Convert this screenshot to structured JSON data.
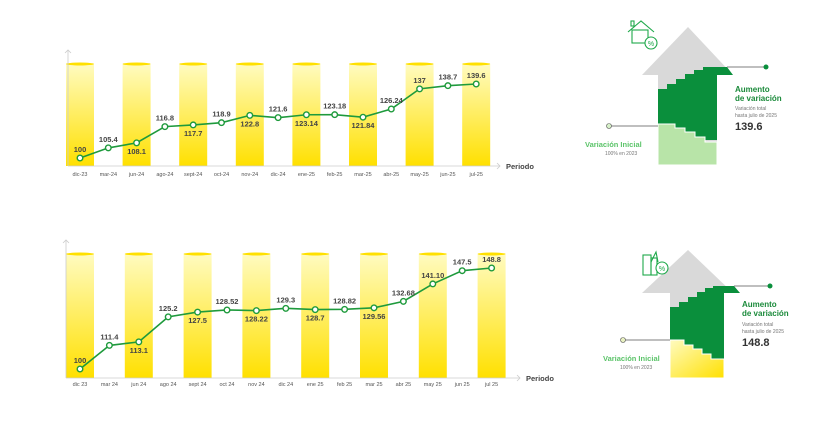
{
  "chart_data": [
    {
      "type": "line",
      "categories": [
        "dic-23",
        "mar-24",
        "jun-24",
        "ago-24",
        "sept-24",
        "oct-24",
        "nov-24",
        "dic-24",
        "ene-25",
        "feb-25",
        "mar-25",
        "abr-25",
        "may-25",
        "jun-25",
        "jul-25"
      ],
      "values": [
        100,
        105.4,
        108.1,
        116.8,
        117.7,
        118.9,
        122.8,
        121.6,
        123.14,
        123.18,
        121.84,
        126.24,
        137,
        138.7,
        139.6
      ],
      "value_labels": [
        "100",
        "105.4",
        "108.1",
        "116.8",
        "117.7",
        "118.9",
        "122.8",
        "121.6",
        "123.14",
        "123.18",
        "121.84",
        "126.24",
        "137",
        "138.7",
        "139.6"
      ],
      "xlabel": "Periodo",
      "ylabel": "",
      "ylim": [
        96,
        142
      ],
      "grid": false
    },
    {
      "type": "line",
      "categories": [
        "dic 23",
        "mar 24",
        "jun 24",
        "ago 24",
        "sept 24",
        "oct 24",
        "nov 24",
        "dic 24",
        "ene 25",
        "feb 25",
        "mar 25",
        "abr 25",
        "may 25",
        "jun 25",
        "jul 25"
      ],
      "values": [
        100,
        111.4,
        113.1,
        125.2,
        127.5,
        128.52,
        128.22,
        129.3,
        128.7,
        128.82,
        129.56,
        132.68,
        141.1,
        147.5,
        148.8
      ],
      "value_labels": [
        "100",
        "111.4",
        "113.1",
        "125.2",
        "127.5",
        "128.52",
        "128.22",
        "129.3",
        "128.7",
        "128.82",
        "129.56",
        "132.68",
        "141.10",
        "147.5",
        "148.8"
      ],
      "xlabel": "Periodo",
      "ylabel": "",
      "ylim": [
        96,
        155
      ],
      "grid": false
    }
  ],
  "infographics": [
    {
      "title_line1": "Aumento",
      "title_line2": "de variación",
      "sub_line1": "Variación total",
      "sub_line2": "hasta julio de 2025",
      "value": "139.6",
      "initial_title": "Variación Inicial",
      "initial_sub": "100% en 2023",
      "icon": "house-percent-icon"
    },
    {
      "title_line1": "Aumento",
      "title_line2": "de variación",
      "sub_line1": "Variación total",
      "sub_line2": "hasta julio de 2025",
      "value": "148.8",
      "initial_title": "Variación Inicial",
      "initial_sub": "100% en 2023",
      "icon": "building-percent-icon"
    }
  ],
  "colors": {
    "line": "#1e9a3c",
    "bar_top": "#fff7a0",
    "bar_bottom": "#ffe000",
    "dark_green": "#0a8f3c",
    "light_green": "#b8e4a8",
    "gray": "#d9d9d9"
  }
}
